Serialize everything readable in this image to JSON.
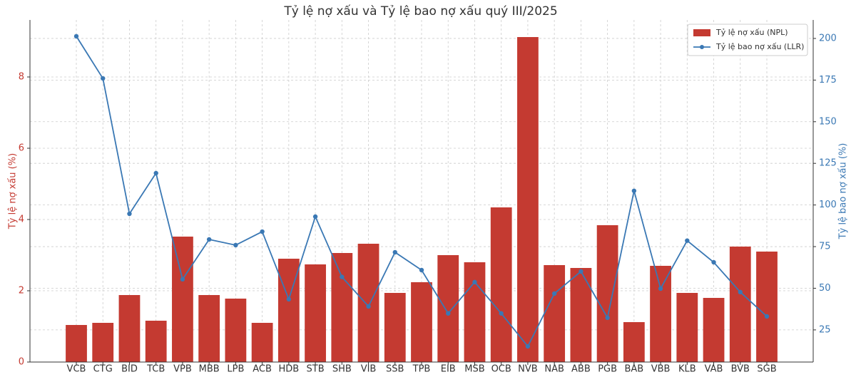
{
  "chart_data": {
    "type": "bar",
    "title": "Tỷ lệ nợ xấu và Tỷ lệ bao nợ xấu quý III/2025",
    "y_label": "Tỷ lệ nợ xấu (%)",
    "y2_label": "Tỷ lệ bao nợ xấu (%)",
    "categories": [
      "VCB",
      "CTG",
      "BID",
      "TCB",
      "VPB",
      "MBB",
      "LPB",
      "ACB",
      "HDB",
      "STB",
      "SHB",
      "VIB",
      "SSB",
      "TPB",
      "EIB",
      "MSB",
      "OCB",
      "NVB",
      "NAB",
      "ABB",
      "PGB",
      "BAB",
      "VBB",
      "KLB",
      "VAB",
      "BVB",
      "SGB"
    ],
    "series": [
      {
        "name": "Tỷ lệ nợ xấu (NPL)",
        "type": "bar",
        "color": "#c43a31",
        "values": [
          1.04,
          1.1,
          1.88,
          1.16,
          3.52,
          1.88,
          1.78,
          1.1,
          2.9,
          2.74,
          3.06,
          3.32,
          1.94,
          2.24,
          3.0,
          2.8,
          4.34,
          9.12,
          2.72,
          2.64,
          3.84,
          1.12,
          2.7,
          1.94,
          1.8,
          3.24,
          3.1
        ]
      },
      {
        "name": "Tỷ lệ bao nợ xấu (LLR)",
        "type": "line",
        "axis": "y2",
        "color": "#3a78b4",
        "values": [
          201.3,
          176.0,
          94.7,
          119.1,
          55.4,
          79.3,
          75.9,
          84.0,
          43.4,
          93.0,
          56.8,
          39.1,
          71.6,
          60.9,
          34.9,
          53.7,
          34.9,
          15.1,
          46.8,
          60.1,
          32.3,
          108.5,
          49.8,
          78.6,
          65.6,
          47.7,
          33.1
        ]
      }
    ],
    "ylim": [
      0,
      9.6
    ],
    "yticks": [
      0,
      2,
      4,
      6,
      8
    ],
    "y2lim": [
      5.7,
      211.1
    ],
    "y2ticks": [
      25,
      50,
      75,
      100,
      125,
      150,
      175,
      200
    ],
    "grid": true,
    "legend": "upper right"
  }
}
